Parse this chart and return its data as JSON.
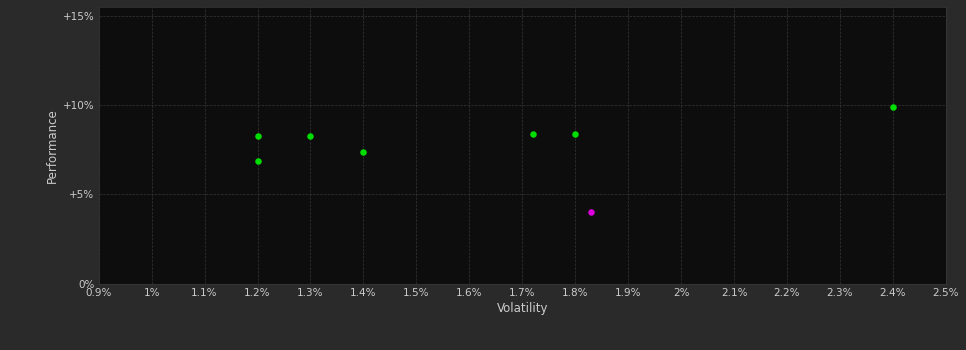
{
  "background_color": "#2a2a2a",
  "plot_background_color": "#0d0d0d",
  "grid_color": "#3a3a3a",
  "text_color": "#cccccc",
  "xlabel": "Volatility",
  "ylabel": "Performance",
  "xlim": [
    0.009,
    0.025
  ],
  "ylim": [
    0.0,
    0.155
  ],
  "xtick_labels": [
    "0.9%",
    "1%",
    "1.1%",
    "1.2%",
    "1.3%",
    "1.4%",
    "1.5%",
    "1.6%",
    "1.7%",
    "1.8%",
    "1.9%",
    "2%",
    "2.1%",
    "2.2%",
    "2.3%",
    "2.4%",
    "2.5%"
  ],
  "xtick_values": [
    0.009,
    0.01,
    0.011,
    0.012,
    0.013,
    0.014,
    0.015,
    0.016,
    0.017,
    0.018,
    0.019,
    0.02,
    0.021,
    0.022,
    0.023,
    0.024,
    0.025
  ],
  "ytick_labels": [
    "0%",
    "+5%",
    "+10%",
    "+15%"
  ],
  "ytick_values": [
    0.0,
    0.05,
    0.1,
    0.15
  ],
  "green_points": [
    [
      0.012,
      0.083
    ],
    [
      0.012,
      0.069
    ],
    [
      0.013,
      0.083
    ],
    [
      0.014,
      0.074
    ],
    [
      0.0172,
      0.084
    ],
    [
      0.018,
      0.084
    ],
    [
      0.024,
      0.099
    ]
  ],
  "magenta_points": [
    [
      0.0183,
      0.04
    ]
  ],
  "green_color": "#00dd00",
  "magenta_color": "#dd00dd",
  "marker_size": 22
}
